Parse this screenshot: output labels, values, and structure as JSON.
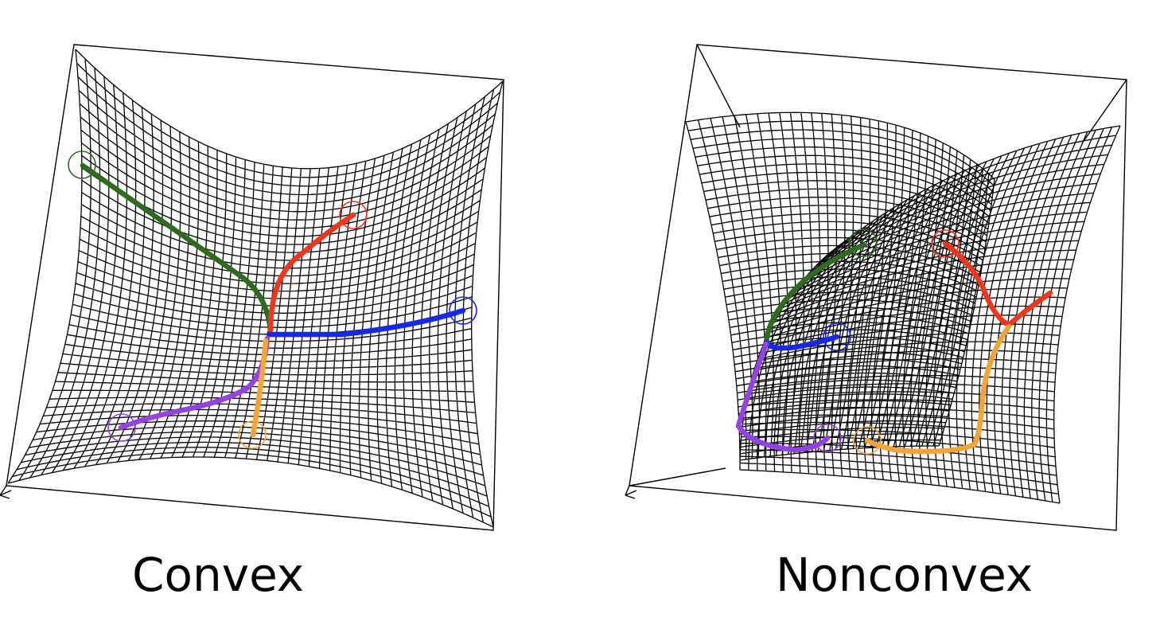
{
  "figure": {
    "panels": [
      {
        "label": "Convex"
      },
      {
        "label": "Nonconvex"
      }
    ]
  },
  "colors": {
    "mesh": "#000000",
    "background": "#ffffff",
    "path_green": "#2e6b1e",
    "path_red": "#f2351d",
    "path_blue": "#1428f0",
    "path_purple": "#9441e8",
    "path_orange": "#f5a535"
  },
  "path_names": [
    "green-path",
    "red-path",
    "blue-path",
    "purple-path",
    "orange-path"
  ]
}
